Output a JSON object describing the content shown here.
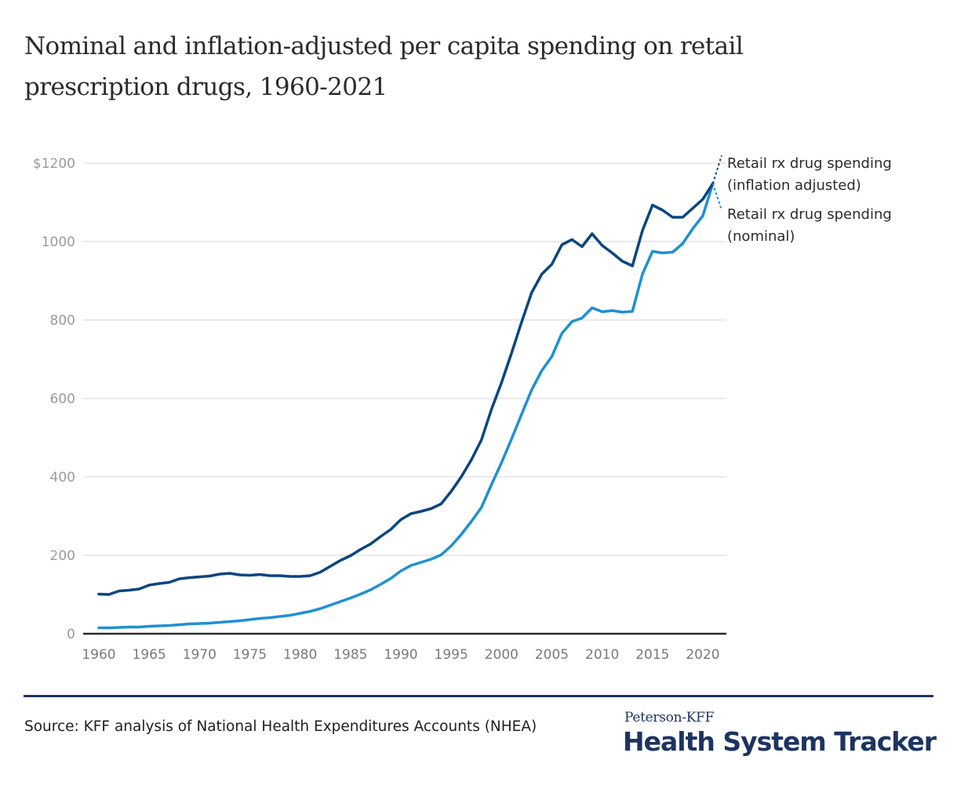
{
  "title": "Nominal and inflation-adjusted per capita spending on retail prescription drugs, 1960-2021",
  "colors": {
    "inflation_adjusted": "#0a4680",
    "nominal": "#1f90d2",
    "grid": "#e3e3e3",
    "axis": "#2b2b2b",
    "brand": "#1d3461"
  },
  "chart_data": {
    "type": "line",
    "title": "Nominal and inflation-adjusted per capita spending on retail prescription drugs, 1960-2021",
    "xlabel": "",
    "ylabel": "",
    "xlim": [
      1960,
      2021
    ],
    "ylim": [
      0,
      1200
    ],
    "grid": true,
    "legend_position": "right (direct labels at line ends)",
    "y_ticks": [
      0,
      200,
      400,
      600,
      800,
      1000,
      1200
    ],
    "y_tick_labels": [
      "0",
      "200",
      "400",
      "600",
      "800",
      "1000",
      "$1200"
    ],
    "x_ticks": [
      1960,
      1965,
      1970,
      1975,
      1980,
      1985,
      1990,
      1995,
      2000,
      2005,
      2010,
      2015,
      2020
    ],
    "x_tick_labels": [
      "1960",
      "1965",
      "1970",
      "1975",
      "1980",
      "1985",
      "1990",
      "1995",
      "2000",
      "2005",
      "2010",
      "2015",
      "2020"
    ],
    "x": [
      1960,
      1961,
      1962,
      1963,
      1964,
      1965,
      1966,
      1967,
      1968,
      1969,
      1970,
      1971,
      1972,
      1973,
      1974,
      1975,
      1976,
      1977,
      1978,
      1979,
      1980,
      1981,
      1982,
      1983,
      1984,
      1985,
      1986,
      1987,
      1988,
      1989,
      1990,
      1991,
      1992,
      1993,
      1994,
      1995,
      1996,
      1997,
      1998,
      1999,
      2000,
      2001,
      2002,
      2003,
      2004,
      2005,
      2006,
      2007,
      2008,
      2009,
      2010,
      2011,
      2012,
      2013,
      2014,
      2015,
      2016,
      2017,
      2018,
      2019,
      2020,
      2021
    ],
    "series": [
      {
        "name": "Retail rx drug spending (inflation adjusted)",
        "label_lines": [
          "Retail rx drug spending",
          "(inflation adjusted)"
        ],
        "color": "#0a4680",
        "values": [
          101,
          100,
          109,
          111,
          114,
          124,
          128,
          131,
          140,
          143,
          145,
          147,
          152,
          154,
          150,
          149,
          151,
          148,
          148,
          146,
          146,
          148,
          157,
          172,
          187,
          199,
          215,
          229,
          248,
          266,
          291,
          306,
          312,
          319,
          331,
          363,
          400,
          443,
          494,
          572,
          640,
          716,
          795,
          870,
          917,
          942,
          992,
          1005,
          987,
          1020,
          990,
          971,
          950,
          938,
          1028,
          1093,
          1080,
          1062,
          1062,
          1085,
          1108,
          1148
        ]
      },
      {
        "name": "Retail rx drug spending (nominal)",
        "label_lines": [
          "Retail rx drug spending",
          "(nominal)"
        ],
        "color": "#1f90d2",
        "values": [
          15,
          15,
          16,
          17,
          17,
          19,
          20,
          21,
          23,
          25,
          26,
          27,
          29,
          31,
          33,
          36,
          39,
          41,
          44,
          47,
          52,
          57,
          64,
          73,
          82,
          91,
          101,
          112,
          126,
          141,
          160,
          174,
          182,
          190,
          201,
          224,
          253,
          286,
          322,
          380,
          436,
          497,
          560,
          622,
          671,
          707,
          766,
          796,
          805,
          831,
          821,
          824,
          820,
          822,
          917,
          975,
          971,
          973,
          995,
          1033,
          1066,
          1148
        ]
      }
    ]
  },
  "footer": {
    "source": "Source: KFF analysis of National Health Expenditures Accounts (NHEA)",
    "brand_top": "Peterson-KFF",
    "brand_main": "Health System Tracker"
  }
}
